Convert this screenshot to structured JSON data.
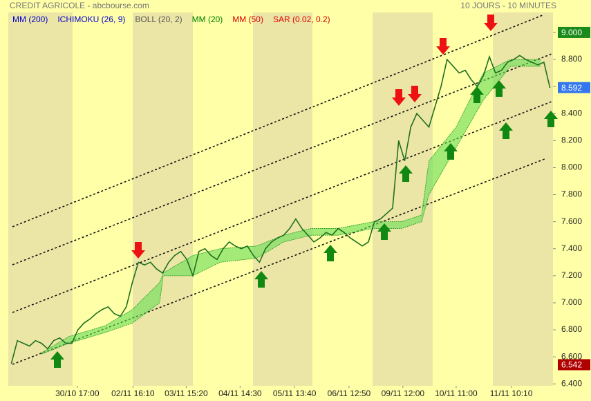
{
  "chart_data": {
    "type": "line",
    "title": "CREDIT AGRICOLE - abcbourse.com",
    "subtitle": "10 JOURS - 10 MINUTES",
    "indicators": [
      {
        "name": "MM (200)",
        "color": "#0000cc"
      },
      {
        "name": "ICHIMOKU (26, 9)",
        "color": "#0000cc"
      },
      {
        "name": "BOLL (20, 2)",
        "color": "#555555"
      },
      {
        "name": "MM (20)",
        "color": "#008000"
      },
      {
        "name": "MM (50)",
        "color": "#dd0000"
      },
      {
        "name": "SAR (0.02, 0.2)",
        "color": "#dd0000"
      }
    ],
    "xlim": [
      0,
      90
    ],
    "xticks": [
      {
        "value": 11.4,
        "label": "30/10 17:00"
      },
      {
        "value": 20.6,
        "label": "02/11 16:10"
      },
      {
        "value": 29.4,
        "label": "03/11 15:20"
      },
      {
        "value": 38.3,
        "label": "04/11 14:30"
      },
      {
        "value": 47.3,
        "label": "05/11 13:40"
      },
      {
        "value": 56.3,
        "label": "06/11 12:50"
      },
      {
        "value": 65.2,
        "label": "09/11 12:00"
      },
      {
        "value": 74.0,
        "label": "10/11 11:00"
      },
      {
        "value": 83.1,
        "label": "11/11 10:10"
      }
    ],
    "ylim": [
      6.386,
      9.148
    ],
    "yticks": [
      {
        "value": 9.0,
        "label": "9.000"
      },
      {
        "value": 8.8,
        "label": "8.800"
      },
      {
        "value": 8.6,
        "label": "8.600"
      },
      {
        "value": 8.4,
        "label": "8.400"
      },
      {
        "value": 8.2,
        "label": "8.200"
      },
      {
        "value": 8.0,
        "label": "8.000"
      },
      {
        "value": 7.8,
        "label": "7.800"
      },
      {
        "value": 7.6,
        "label": "7.600"
      },
      {
        "value": 7.4,
        "label": "7.400"
      },
      {
        "value": 7.2,
        "label": "7.200"
      },
      {
        "value": 7.0,
        "label": "7.000"
      },
      {
        "value": 6.8,
        "label": "6.800"
      },
      {
        "value": 6.6,
        "label": "6.600"
      },
      {
        "value": 6.4,
        "label": "6.400"
      }
    ],
    "price": {
      "color": "#1f6f1f",
      "values": [
        6.55,
        6.72,
        6.7,
        6.68,
        6.72,
        6.7,
        6.66,
        6.72,
        6.74,
        6.7,
        6.7,
        6.8,
        6.85,
        6.88,
        6.92,
        6.95,
        6.97,
        6.92,
        6.9,
        6.97,
        7.15,
        7.3,
        7.28,
        7.3,
        7.25,
        7.22,
        7.3,
        7.35,
        7.38,
        7.32,
        7.2,
        7.38,
        7.4,
        7.35,
        7.32,
        7.4,
        7.45,
        7.42,
        7.4,
        7.42,
        7.35,
        7.3,
        7.4,
        7.45,
        7.48,
        7.5,
        7.55,
        7.62,
        7.55,
        7.5,
        7.45,
        7.48,
        7.52,
        7.5,
        7.55,
        7.52,
        7.48,
        7.45,
        7.42,
        7.45,
        7.6,
        7.62,
        7.66,
        7.7,
        8.2,
        8.05,
        8.3,
        8.4,
        8.35,
        8.3,
        8.45,
        8.6,
        8.8,
        8.75,
        8.7,
        8.72,
        8.65,
        8.6,
        8.68,
        8.82,
        8.7,
        8.72,
        8.78,
        8.8,
        8.83,
        8.8,
        8.78,
        8.76,
        8.78,
        8.59
      ]
    },
    "cloud": {
      "color": "#66dd55",
      "x": [
        5.5,
        10,
        16,
        20.5,
        25,
        25.6,
        30.5,
        35,
        41,
        45.5,
        50,
        54.5,
        60.3,
        65,
        68.3,
        69.5,
        74,
        78.5,
        83,
        88
      ],
      "upper": [
        6.63,
        6.75,
        6.83,
        6.95,
        7.15,
        7.22,
        7.35,
        7.4,
        7.42,
        7.5,
        7.55,
        7.55,
        7.6,
        7.6,
        7.65,
        8.05,
        8.3,
        8.7,
        8.8,
        8.8
      ],
      "lower": [
        6.62,
        6.7,
        6.78,
        6.85,
        7.0,
        7.2,
        7.2,
        7.3,
        7.33,
        7.45,
        7.5,
        7.5,
        7.55,
        7.55,
        7.6,
        7.8,
        8.15,
        8.5,
        8.75,
        8.75
      ]
    },
    "badges": [
      {
        "value": 9.0,
        "label": "9.000",
        "color": "#1a8a1a"
      },
      {
        "value": 8.592,
        "label": "8.592",
        "color": "#3377ee"
      },
      {
        "value": 6.542,
        "label": "6.542",
        "color": "#b00000"
      }
    ]
  }
}
